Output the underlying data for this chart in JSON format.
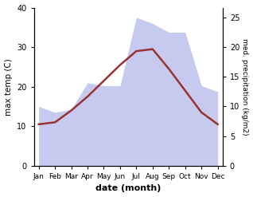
{
  "months": [
    "Jan",
    "Feb",
    "Mar",
    "Apr",
    "May",
    "Jun",
    "Jul",
    "Aug",
    "Sep",
    "Oct",
    "Nov",
    "Dec"
  ],
  "x": [
    0,
    1,
    2,
    3,
    4,
    5,
    6,
    7,
    8,
    9,
    10,
    11
  ],
  "max_temp": [
    10.5,
    11.0,
    14.0,
    17.5,
    21.5,
    25.5,
    29.0,
    29.5,
    24.5,
    19.0,
    13.5,
    10.5
  ],
  "precipitation": [
    10.0,
    9.0,
    9.5,
    14.0,
    13.5,
    13.5,
    25.0,
    24.0,
    22.5,
    22.5,
    13.5,
    12.5
  ],
  "temp_color": "#993333",
  "precip_fill_color": "#c5caee",
  "temp_ylim": [
    0,
    40
  ],
  "precip_ylim": [
    0,
    26.667
  ],
  "xlabel": "date (month)",
  "ylabel_left": "max temp (C)",
  "ylabel_right": "med. precipitation (kg/m2)",
  "bg_color": "#ffffff",
  "temp_linewidth": 1.8
}
